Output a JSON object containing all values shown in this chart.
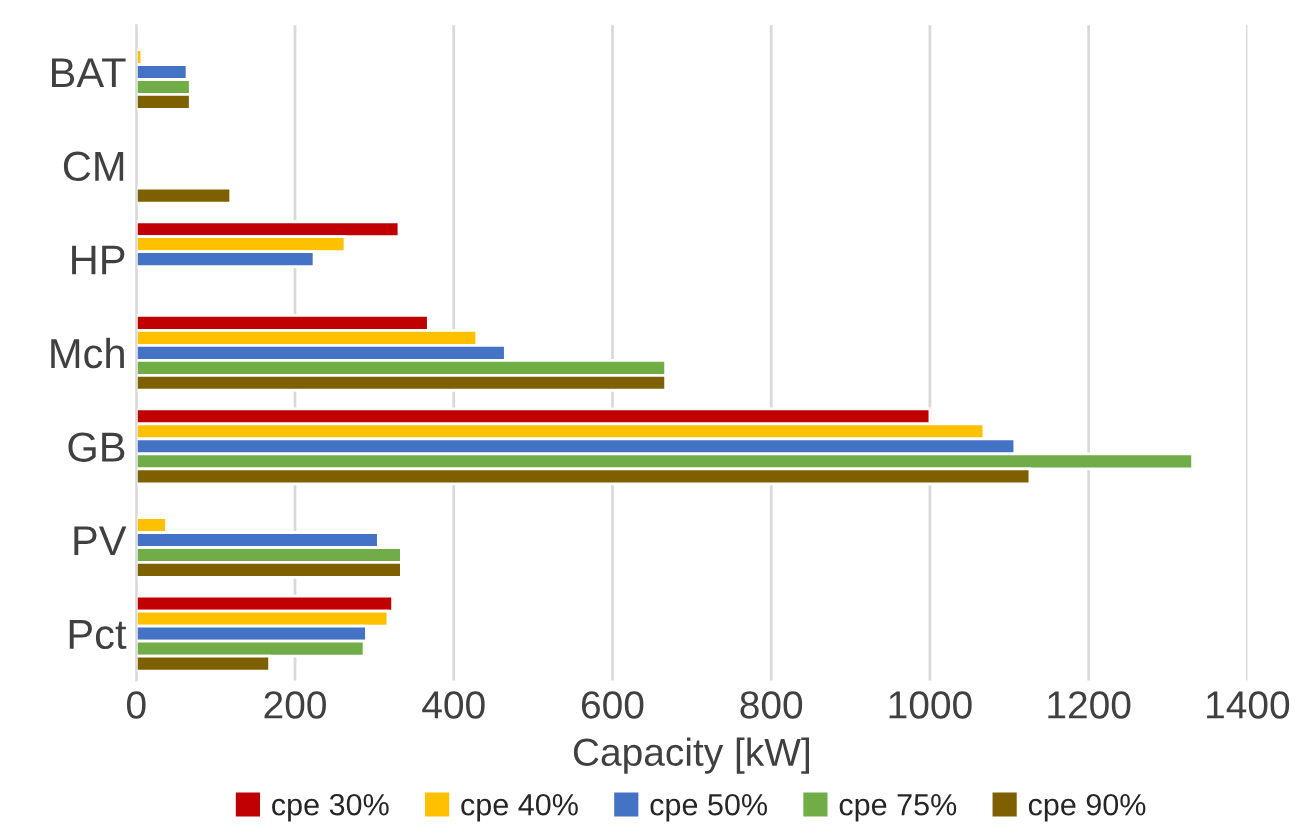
{
  "chart_data": {
    "type": "bar",
    "orientation": "horizontal",
    "xlabel": "Capacity [kW]",
    "categories": [
      "BAT",
      "CM",
      "HP",
      "Mch",
      "GB",
      "PV",
      "Pct"
    ],
    "series": [
      {
        "name": "cpe 30%",
        "color": "#c00000",
        "values": [
          null,
          null,
          331,
          368,
          1000,
          null,
          323
        ]
      },
      {
        "name": "cpe 40%",
        "color": "#ffc000",
        "values": [
          7,
          null,
          263,
          429,
          1068,
          38,
          317
        ]
      },
      {
        "name": "cpe 50%",
        "color": "#4472c4",
        "values": [
          64,
          null,
          224,
          465,
          1107,
          305,
          290
        ]
      },
      {
        "name": "cpe 75%",
        "color": "#70ad47",
        "values": [
          68,
          null,
          null,
          667,
          1331,
          334,
          287
        ]
      },
      {
        "name": "cpe 90%",
        "color": "#7f6000",
        "values": [
          68,
          119,
          null,
          667,
          1126,
          334,
          168
        ]
      }
    ],
    "xlim": [
      0,
      1400
    ],
    "xticks": [
      0,
      200,
      400,
      600,
      800,
      1000,
      1200,
      1400
    ],
    "grid": "x",
    "legend": "bottom"
  }
}
